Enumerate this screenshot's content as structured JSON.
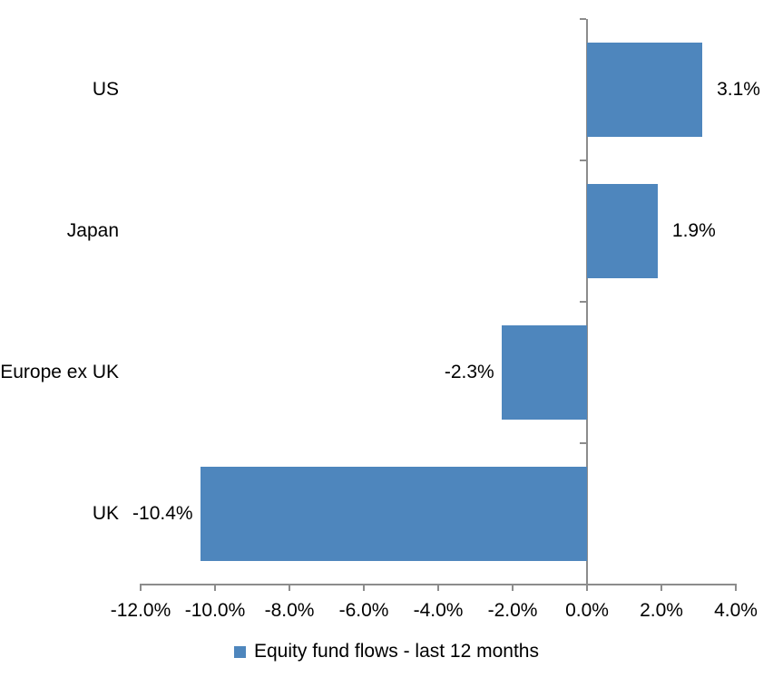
{
  "chart_data": {
    "type": "bar",
    "orientation": "horizontal",
    "title": "",
    "categories": [
      "US",
      "Japan",
      "Europe ex UK",
      "UK"
    ],
    "values": [
      3.1,
      1.9,
      -2.3,
      -10.4
    ],
    "value_labels": [
      "3.1%",
      "1.9%",
      "-2.3%",
      "-10.4%"
    ],
    "xlim": [
      -12,
      4
    ],
    "x_ticks": [
      -12,
      -10,
      -8,
      -6,
      -4,
      -2,
      0,
      2,
      4
    ],
    "x_tick_labels": [
      "-12.0%",
      "-10.0%",
      "-8.0%",
      "-6.0%",
      "-4.0%",
      "-2.0%",
      "0.0%",
      "2.0%",
      "4.0%"
    ],
    "grid": false,
    "legend_position": "bottom",
    "legend_label": "Equity fund flows - last 12 months",
    "bar_color": "#4E86BD",
    "axis_color": "#8C8C8C",
    "text_color": "#000000"
  }
}
